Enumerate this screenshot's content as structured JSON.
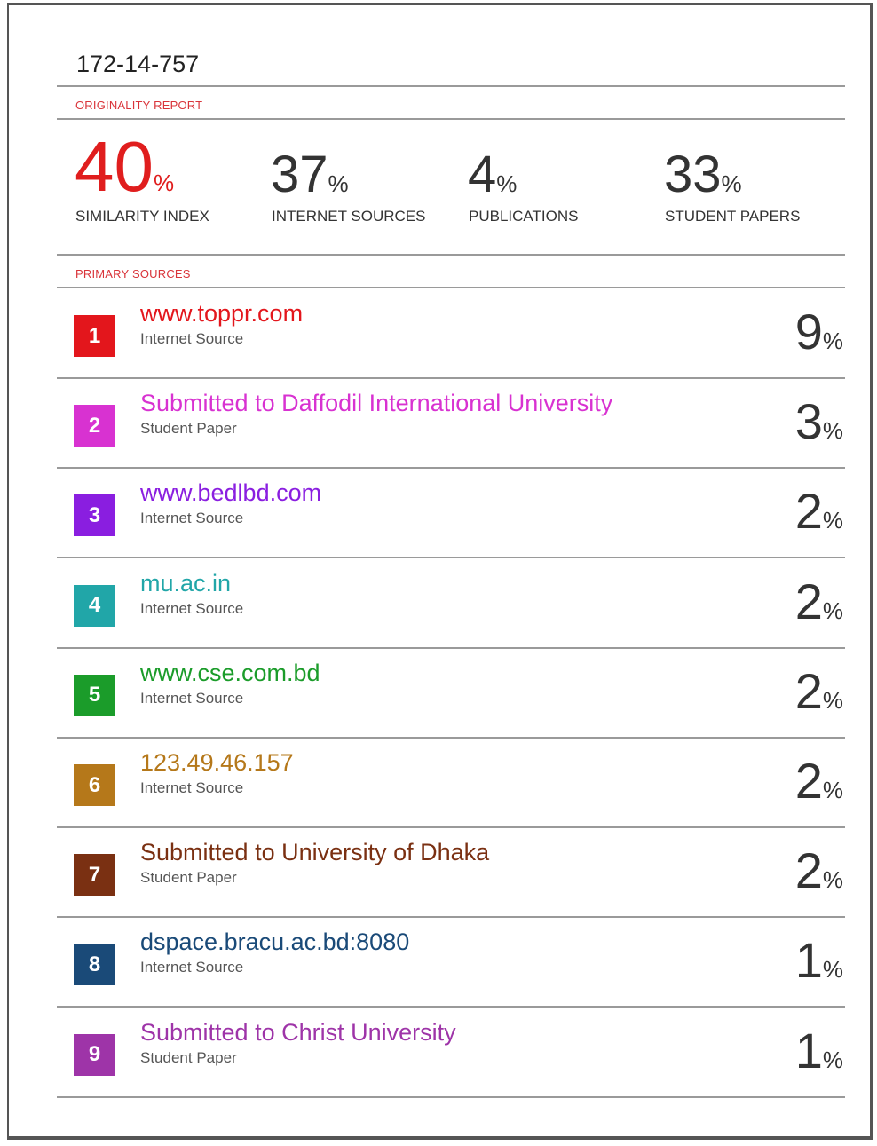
{
  "header": {
    "title": "172-14-757",
    "section": "ORIGINALITY REPORT"
  },
  "stats": [
    {
      "value": "40",
      "unit": "%",
      "label": "SIMILARITY INDEX",
      "color": "#e01e1e"
    },
    {
      "value": "37",
      "unit": "%",
      "label": "INTERNET SOURCES",
      "color": "#333333"
    },
    {
      "value": "4",
      "unit": "%",
      "label": "PUBLICATIONS",
      "color": "#333333"
    },
    {
      "value": "33",
      "unit": "%",
      "label": "STUDENT PAPERS",
      "color": "#333333"
    }
  ],
  "sources_heading": "PRIMARY SOURCES",
  "sources": [
    {
      "number": "1",
      "title": "www.toppr.com",
      "type": "Internet Source",
      "percent": "9",
      "unit": "%",
      "color": "#e3161c"
    },
    {
      "number": "2",
      "title": "Submitted to Daffodil International University",
      "type": "Student Paper",
      "percent": "3",
      "unit": "%",
      "color": "#d832d1"
    },
    {
      "number": "3",
      "title": "www.bedlbd.com",
      "type": "Internet Source",
      "percent": "2",
      "unit": "%",
      "color": "#8a1ee0"
    },
    {
      "number": "4",
      "title": "mu.ac.in",
      "type": "Internet Source",
      "percent": "2",
      "unit": "%",
      "color": "#21a6a8"
    },
    {
      "number": "5",
      "title": "www.cse.com.bd",
      "type": "Internet Source",
      "percent": "2",
      "unit": "%",
      "color": "#1b9c2a"
    },
    {
      "number": "6",
      "title": "123.49.46.157",
      "type": "Internet Source",
      "percent": "2",
      "unit": "%",
      "color": "#b5781a"
    },
    {
      "number": "7",
      "title": "Submitted to University of Dhaka",
      "type": "Student Paper",
      "percent": "2",
      "unit": "%",
      "color": "#7a3012"
    },
    {
      "number": "8",
      "title": "dspace.bracu.ac.bd:8080",
      "type": "Internet Source",
      "percent": "1",
      "unit": "%",
      "color": "#1a4a78"
    },
    {
      "number": "9",
      "title": "Submitted to Christ University",
      "type": "Student Paper",
      "percent": "1",
      "unit": "%",
      "color": "#9e34a8"
    }
  ]
}
